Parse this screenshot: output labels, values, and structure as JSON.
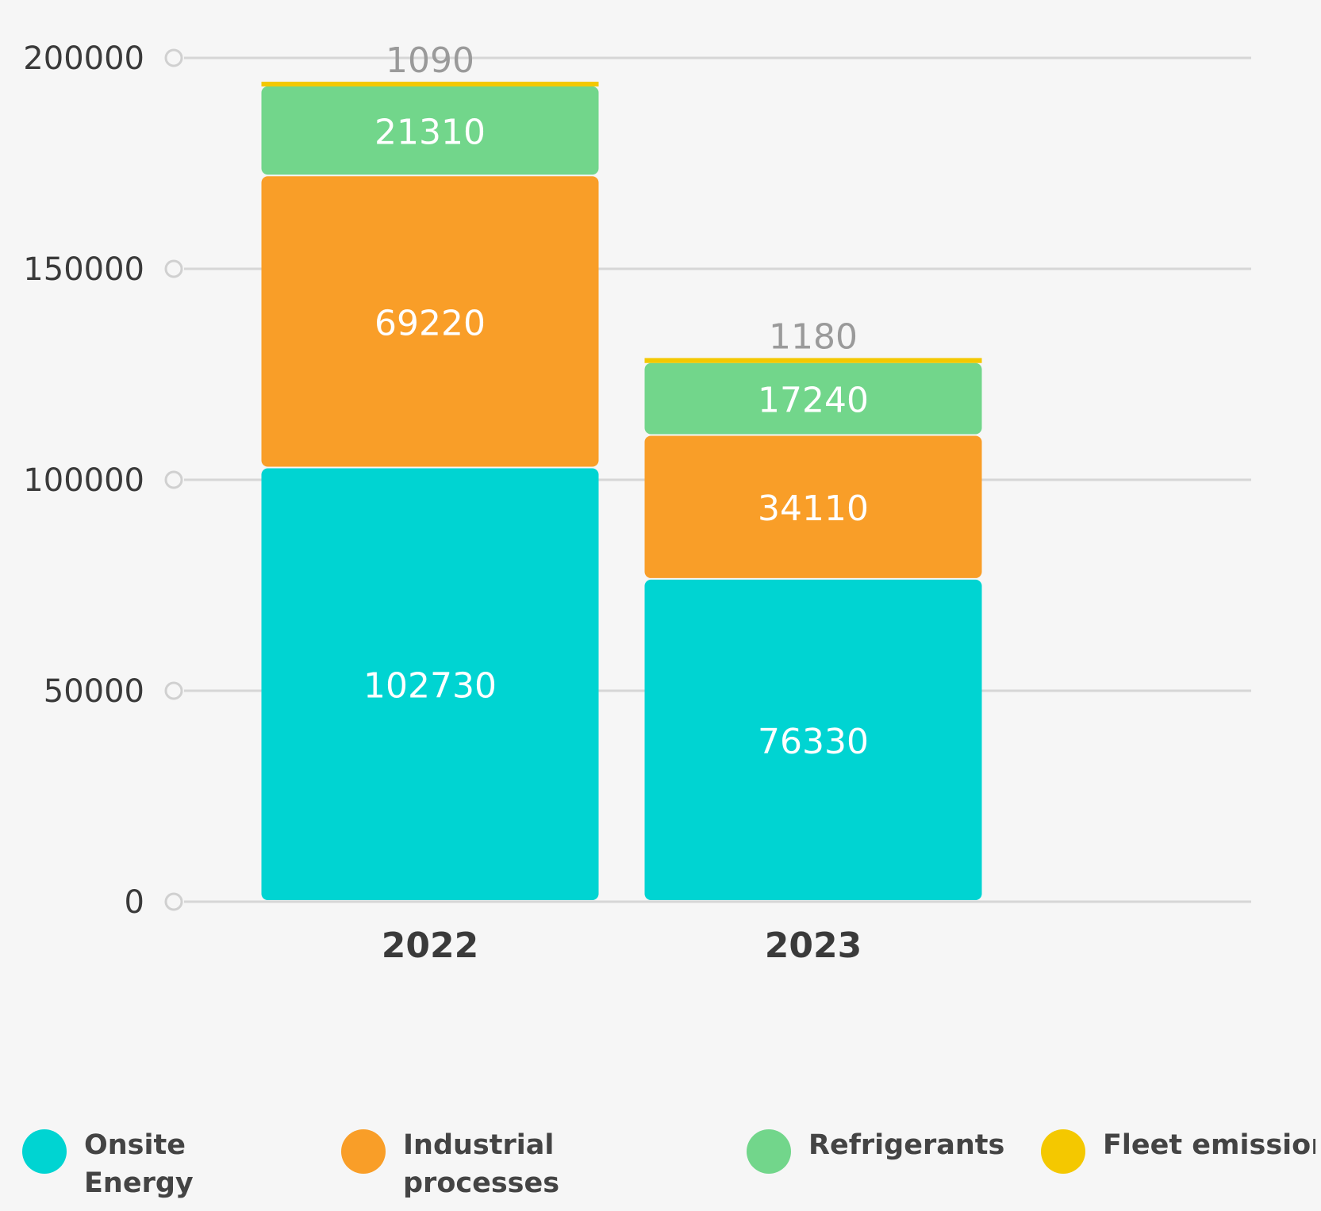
{
  "chart_data": {
    "type": "bar",
    "stacked": true,
    "categories": [
      "2022",
      "2023"
    ],
    "series": [
      {
        "name": "Onsite Energy generation",
        "color": "#00d4d2",
        "values": [
          102730,
          76330
        ]
      },
      {
        "name": "Industrial processes emissions",
        "color": "#f99e28",
        "values": [
          69220,
          34110
        ]
      },
      {
        "name": "Refrigerants",
        "color": "#72d68b",
        "values": [
          21310,
          17240
        ]
      },
      {
        "name": "Fleet emissions",
        "color": "#f4c800",
        "values": [
          1090,
          1180
        ]
      }
    ],
    "yticks": [
      0,
      50000,
      100000,
      150000,
      200000
    ],
    "ylim": [
      0,
      200000
    ],
    "grid": true,
    "legend_position": "bottom",
    "title": "",
    "xlabel": "",
    "ylabel": ""
  },
  "legend": {
    "items": [
      {
        "label": "Onsite Energy generation"
      },
      {
        "label": "Industrial processes emissions"
      },
      {
        "label": "Refrigerants"
      },
      {
        "label": "Fleet emissions"
      }
    ]
  }
}
